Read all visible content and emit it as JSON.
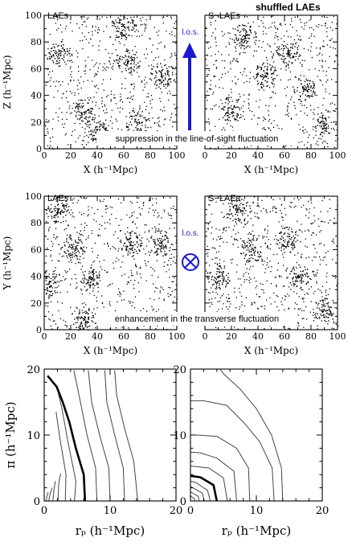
{
  "header": {
    "shuffled_label": "shuffled LAEs"
  },
  "annotations": {
    "los_top": "l.o.s.",
    "los_bottom": "l.o.s.",
    "suppression": "suppression in the line-of-sight fluctuation",
    "enhancement": "enhancement in the transverse fluctuation"
  },
  "colors": {
    "arrow": "#1a1ad0",
    "points": "#000000",
    "contour": "#333333"
  },
  "icons": {
    "los_arrow": "arrow-up-icon",
    "los_into_page": "circled-times-icon"
  },
  "chart_data": [
    {
      "type": "scatter",
      "panel": "XZ, LAEs",
      "title": "LAEs",
      "xlabel": "X (h⁻¹Mpc)",
      "ylabel": "Z (h⁻¹Mpc)",
      "xlim": [
        0,
        100
      ],
      "ylim": [
        0,
        100
      ],
      "xticks": [
        "0",
        "20",
        "40",
        "60",
        "80",
        "100"
      ],
      "yticks": [
        "0",
        "20",
        "40",
        "60",
        "80",
        "100"
      ],
      "clusters": [
        [
          60,
          92
        ],
        [
          63,
          66
        ],
        [
          30,
          28
        ],
        [
          12,
          72
        ],
        [
          70,
          20
        ],
        [
          88,
          55
        ],
        [
          40,
          15
        ]
      ]
    },
    {
      "type": "scatter",
      "panel": "XZ, S-LAEs",
      "title": "S−LAEs",
      "xlabel": "X (h⁻¹Mpc)",
      "xlim": [
        0,
        100
      ],
      "ylim": [
        0,
        100
      ],
      "xticks": [
        "0",
        "20",
        "40",
        "60",
        "80",
        "100"
      ],
      "clusters": [
        [
          62,
          72
        ],
        [
          30,
          85
        ],
        [
          20,
          30
        ],
        [
          75,
          45
        ],
        [
          90,
          20
        ],
        [
          45,
          55
        ]
      ]
    },
    {
      "type": "scatter",
      "panel": "XY, LAEs",
      "title": "LAEs",
      "xlabel": "X (h⁻¹Mpc)",
      "ylabel": "Y (h⁻¹Mpc)",
      "xlim": [
        0,
        100
      ],
      "ylim": [
        0,
        100
      ],
      "xticks": [
        "0",
        "20",
        "40",
        "60",
        "80",
        "100"
      ],
      "yticks": [
        "0",
        "20",
        "40",
        "60",
        "80",
        "100"
      ],
      "clusters": [
        [
          10,
          90
        ],
        [
          35,
          38
        ],
        [
          22,
          62
        ],
        [
          65,
          65
        ],
        [
          3,
          35
        ],
        [
          30,
          8
        ],
        [
          88,
          65
        ]
      ]
    },
    {
      "type": "scatter",
      "panel": "XY, S-LAEs",
      "title": "S−LAEs",
      "xlabel": "X (h⁻¹Mpc)",
      "xlim": [
        0,
        100
      ],
      "ylim": [
        0,
        100
      ],
      "xticks": [
        "0",
        "20",
        "40",
        "60",
        "80",
        "100"
      ],
      "clusters": [
        [
          10,
          40
        ],
        [
          35,
          60
        ],
        [
          25,
          90
        ],
        [
          62,
          68
        ],
        [
          90,
          15
        ],
        [
          70,
          40
        ]
      ]
    },
    {
      "type": "line",
      "panel": "2PCF contours, LAEs",
      "xlabel": "rₚ (h⁻¹Mpc)",
      "ylabel": "π (h⁻¹Mpc)",
      "xlim": [
        0,
        20
      ],
      "ylim": [
        0,
        20
      ],
      "xticks": [
        "0",
        "10",
        "20"
      ],
      "yticks": [
        "0",
        "10",
        "20"
      ],
      "series": [
        {
          "values": [
            [
              0.3,
              0
            ],
            [
              0.4,
              0.7
            ],
            [
              0.6,
              1.3
            ]
          ]
        },
        {
          "values": [
            [
              0.7,
              0
            ],
            [
              0.9,
              1.1
            ],
            [
              1.2,
              2.0
            ]
          ]
        },
        {
          "values": [
            [
              1.3,
              0
            ],
            [
              1.5,
              1.8
            ],
            [
              1.7,
              3.0
            ]
          ]
        },
        {
          "values": [
            [
              2.1,
              0
            ],
            [
              2.2,
              2.6
            ],
            [
              2.5,
              4.2
            ]
          ]
        },
        {
          "values": [
            [
              3.2,
              0
            ],
            [
              3.3,
              4.0
            ],
            [
              2.8,
              7.0
            ],
            [
              2.3,
              10.0
            ],
            [
              1.8,
              13.5
            ]
          ]
        },
        {
          "values": [
            [
              4.6,
              0
            ],
            [
              4.8,
              3.0
            ],
            [
              3.6,
              9.0
            ],
            [
              2.7,
              14.0
            ],
            [
              2.0,
              17.0
            ]
          ]
        },
        {
          "values": [
            [
              6.2,
              0
            ],
            [
              6.0,
              4.0
            ],
            [
              4.8,
              8.0
            ],
            [
              3.8,
              12.0
            ],
            [
              2.8,
              15.0
            ],
            [
              1.9,
              17.3
            ],
            [
              0.5,
              19.0
            ]
          ],
          "bold": true
        },
        {
          "values": [
            [
              8.0,
              0
            ],
            [
              7.8,
              5.0
            ],
            [
              6.5,
              10.0
            ],
            [
              5.5,
              15.0
            ],
            [
              4.5,
              19.8
            ]
          ]
        },
        {
          "values": [
            [
              10.0,
              0
            ],
            [
              9.8,
              5.0
            ],
            [
              8.4,
              10.0
            ],
            [
              7.2,
              15.0
            ],
            [
              6.7,
              19.8
            ]
          ]
        },
        {
          "values": [
            [
              12.2,
              0
            ],
            [
              12.0,
              5.0
            ],
            [
              10.7,
              10.0
            ],
            [
              9.5,
              15.0
            ],
            [
              9.2,
              19.8
            ]
          ]
        },
        {
          "values": [
            [
              14.2,
              0
            ],
            [
              13.6,
              6.0
            ],
            [
              12.2,
              11.0
            ],
            [
              11.0,
              16.0
            ],
            [
              10.7,
              19.8
            ]
          ]
        }
      ]
    },
    {
      "type": "line",
      "panel": "2PCF contours, S-LAEs",
      "xlabel": "rₚ (h⁻¹Mpc)",
      "xlim": [
        0,
        20
      ],
      "ylim": [
        0,
        20
      ],
      "xticks": [
        "0",
        "10",
        "20"
      ],
      "yticks": [
        "0",
        "10",
        "20"
      ],
      "series": [
        {
          "values": [
            [
              0.7,
              0
            ],
            [
              0.6,
              0.3
            ],
            [
              0,
              0.8
            ]
          ]
        },
        {
          "values": [
            [
              1.3,
              0
            ],
            [
              1.2,
              0.7
            ],
            [
              0,
              1.4
            ]
          ]
        },
        {
          "values": [
            [
              2.1,
              0
            ],
            [
              1.8,
              1.2
            ],
            [
              0,
              2.2
            ]
          ]
        },
        {
          "values": [
            [
              3.0,
              0
            ],
            [
              2.6,
              1.6
            ],
            [
              0.8,
              2.8
            ],
            [
              0,
              3.0
            ]
          ]
        },
        {
          "values": [
            [
              4.0,
              0
            ],
            [
              3.5,
              2.4
            ],
            [
              1.5,
              3.6
            ],
            [
              0,
              3.8
            ]
          ],
          "bold": true
        },
        {
          "values": [
            [
              5.6,
              0
            ],
            [
              5.0,
              3.5
            ],
            [
              2.8,
              5.0
            ],
            [
              0,
              5.3
            ]
          ]
        },
        {
          "values": [
            [
              7.0,
              0
            ],
            [
              6.6,
              4.5
            ],
            [
              4.0,
              6.5
            ],
            [
              1.5,
              7.3
            ],
            [
              0,
              7.4
            ]
          ]
        },
        {
          "values": [
            [
              9.0,
              0
            ],
            [
              8.8,
              5.0
            ],
            [
              7.0,
              8.0
            ],
            [
              4.0,
              9.8
            ],
            [
              1.0,
              10.0
            ],
            [
              0,
              10.0
            ]
          ]
        },
        {
          "values": [
            [
              12.7,
              0
            ],
            [
              12.4,
              5.0
            ],
            [
              10.5,
              9.0
            ],
            [
              8.0,
              12.0
            ],
            [
              5.5,
              14.5
            ],
            [
              2.0,
              15.2
            ],
            [
              0,
              15.2
            ]
          ]
        },
        {
          "values": [
            [
              14.0,
              0
            ],
            [
              13.8,
              5.0
            ],
            [
              12.3,
              10.0
            ],
            [
              10.0,
              14.0
            ],
            [
              7.5,
              17.0
            ],
            [
              5.0,
              19.3
            ],
            [
              4.5,
              20.0
            ]
          ]
        }
      ]
    }
  ]
}
